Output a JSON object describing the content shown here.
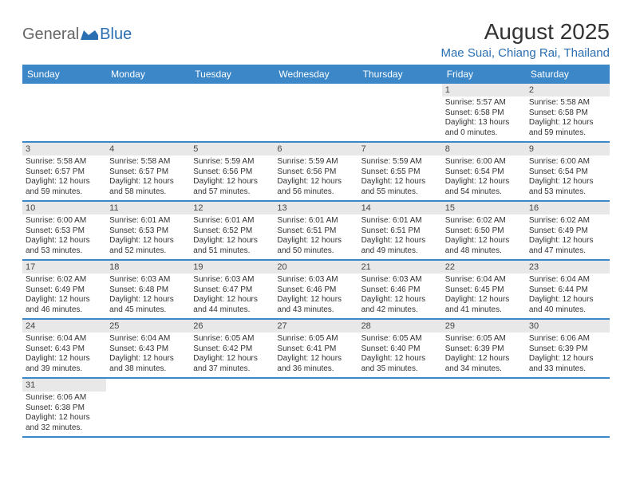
{
  "logo": {
    "text1": "General",
    "text2": "Blue"
  },
  "title": "August 2025",
  "location": "Mae Suai, Chiang Rai, Thailand",
  "colors": {
    "header_bg": "#3b87c8",
    "header_text": "#ffffff",
    "daynum_bg": "#e8e8e8",
    "row_border": "#3b87c8",
    "logo_accent": "#2b6fb3"
  },
  "day_names": [
    "Sunday",
    "Monday",
    "Tuesday",
    "Wednesday",
    "Thursday",
    "Friday",
    "Saturday"
  ],
  "weeks": [
    [
      {
        "empty": true
      },
      {
        "empty": true
      },
      {
        "empty": true
      },
      {
        "empty": true
      },
      {
        "empty": true
      },
      {
        "day": "1",
        "sunrise": "Sunrise: 5:57 AM",
        "sunset": "Sunset: 6:58 PM",
        "daylight": "Daylight: 13 hours and 0 minutes."
      },
      {
        "day": "2",
        "sunrise": "Sunrise: 5:58 AM",
        "sunset": "Sunset: 6:58 PM",
        "daylight": "Daylight: 12 hours and 59 minutes."
      }
    ],
    [
      {
        "day": "3",
        "sunrise": "Sunrise: 5:58 AM",
        "sunset": "Sunset: 6:57 PM",
        "daylight": "Daylight: 12 hours and 59 minutes."
      },
      {
        "day": "4",
        "sunrise": "Sunrise: 5:58 AM",
        "sunset": "Sunset: 6:57 PM",
        "daylight": "Daylight: 12 hours and 58 minutes."
      },
      {
        "day": "5",
        "sunrise": "Sunrise: 5:59 AM",
        "sunset": "Sunset: 6:56 PM",
        "daylight": "Daylight: 12 hours and 57 minutes."
      },
      {
        "day": "6",
        "sunrise": "Sunrise: 5:59 AM",
        "sunset": "Sunset: 6:56 PM",
        "daylight": "Daylight: 12 hours and 56 minutes."
      },
      {
        "day": "7",
        "sunrise": "Sunrise: 5:59 AM",
        "sunset": "Sunset: 6:55 PM",
        "daylight": "Daylight: 12 hours and 55 minutes."
      },
      {
        "day": "8",
        "sunrise": "Sunrise: 6:00 AM",
        "sunset": "Sunset: 6:54 PM",
        "daylight": "Daylight: 12 hours and 54 minutes."
      },
      {
        "day": "9",
        "sunrise": "Sunrise: 6:00 AM",
        "sunset": "Sunset: 6:54 PM",
        "daylight": "Daylight: 12 hours and 53 minutes."
      }
    ],
    [
      {
        "day": "10",
        "sunrise": "Sunrise: 6:00 AM",
        "sunset": "Sunset: 6:53 PM",
        "daylight": "Daylight: 12 hours and 53 minutes."
      },
      {
        "day": "11",
        "sunrise": "Sunrise: 6:01 AM",
        "sunset": "Sunset: 6:53 PM",
        "daylight": "Daylight: 12 hours and 52 minutes."
      },
      {
        "day": "12",
        "sunrise": "Sunrise: 6:01 AM",
        "sunset": "Sunset: 6:52 PM",
        "daylight": "Daylight: 12 hours and 51 minutes."
      },
      {
        "day": "13",
        "sunrise": "Sunrise: 6:01 AM",
        "sunset": "Sunset: 6:51 PM",
        "daylight": "Daylight: 12 hours and 50 minutes."
      },
      {
        "day": "14",
        "sunrise": "Sunrise: 6:01 AM",
        "sunset": "Sunset: 6:51 PM",
        "daylight": "Daylight: 12 hours and 49 minutes."
      },
      {
        "day": "15",
        "sunrise": "Sunrise: 6:02 AM",
        "sunset": "Sunset: 6:50 PM",
        "daylight": "Daylight: 12 hours and 48 minutes."
      },
      {
        "day": "16",
        "sunrise": "Sunrise: 6:02 AM",
        "sunset": "Sunset: 6:49 PM",
        "daylight": "Daylight: 12 hours and 47 minutes."
      }
    ],
    [
      {
        "day": "17",
        "sunrise": "Sunrise: 6:02 AM",
        "sunset": "Sunset: 6:49 PM",
        "daylight": "Daylight: 12 hours and 46 minutes."
      },
      {
        "day": "18",
        "sunrise": "Sunrise: 6:03 AM",
        "sunset": "Sunset: 6:48 PM",
        "daylight": "Daylight: 12 hours and 45 minutes."
      },
      {
        "day": "19",
        "sunrise": "Sunrise: 6:03 AM",
        "sunset": "Sunset: 6:47 PM",
        "daylight": "Daylight: 12 hours and 44 minutes."
      },
      {
        "day": "20",
        "sunrise": "Sunrise: 6:03 AM",
        "sunset": "Sunset: 6:46 PM",
        "daylight": "Daylight: 12 hours and 43 minutes."
      },
      {
        "day": "21",
        "sunrise": "Sunrise: 6:03 AM",
        "sunset": "Sunset: 6:46 PM",
        "daylight": "Daylight: 12 hours and 42 minutes."
      },
      {
        "day": "22",
        "sunrise": "Sunrise: 6:04 AM",
        "sunset": "Sunset: 6:45 PM",
        "daylight": "Daylight: 12 hours and 41 minutes."
      },
      {
        "day": "23",
        "sunrise": "Sunrise: 6:04 AM",
        "sunset": "Sunset: 6:44 PM",
        "daylight": "Daylight: 12 hours and 40 minutes."
      }
    ],
    [
      {
        "day": "24",
        "sunrise": "Sunrise: 6:04 AM",
        "sunset": "Sunset: 6:43 PM",
        "daylight": "Daylight: 12 hours and 39 minutes."
      },
      {
        "day": "25",
        "sunrise": "Sunrise: 6:04 AM",
        "sunset": "Sunset: 6:43 PM",
        "daylight": "Daylight: 12 hours and 38 minutes."
      },
      {
        "day": "26",
        "sunrise": "Sunrise: 6:05 AM",
        "sunset": "Sunset: 6:42 PM",
        "daylight": "Daylight: 12 hours and 37 minutes."
      },
      {
        "day": "27",
        "sunrise": "Sunrise: 6:05 AM",
        "sunset": "Sunset: 6:41 PM",
        "daylight": "Daylight: 12 hours and 36 minutes."
      },
      {
        "day": "28",
        "sunrise": "Sunrise: 6:05 AM",
        "sunset": "Sunset: 6:40 PM",
        "daylight": "Daylight: 12 hours and 35 minutes."
      },
      {
        "day": "29",
        "sunrise": "Sunrise: 6:05 AM",
        "sunset": "Sunset: 6:39 PM",
        "daylight": "Daylight: 12 hours and 34 minutes."
      },
      {
        "day": "30",
        "sunrise": "Sunrise: 6:06 AM",
        "sunset": "Sunset: 6:39 PM",
        "daylight": "Daylight: 12 hours and 33 minutes."
      }
    ],
    [
      {
        "day": "31",
        "sunrise": "Sunrise: 6:06 AM",
        "sunset": "Sunset: 6:38 PM",
        "daylight": "Daylight: 12 hours and 32 minutes."
      },
      {
        "empty": true
      },
      {
        "empty": true
      },
      {
        "empty": true
      },
      {
        "empty": true
      },
      {
        "empty": true
      },
      {
        "empty": true
      }
    ]
  ]
}
